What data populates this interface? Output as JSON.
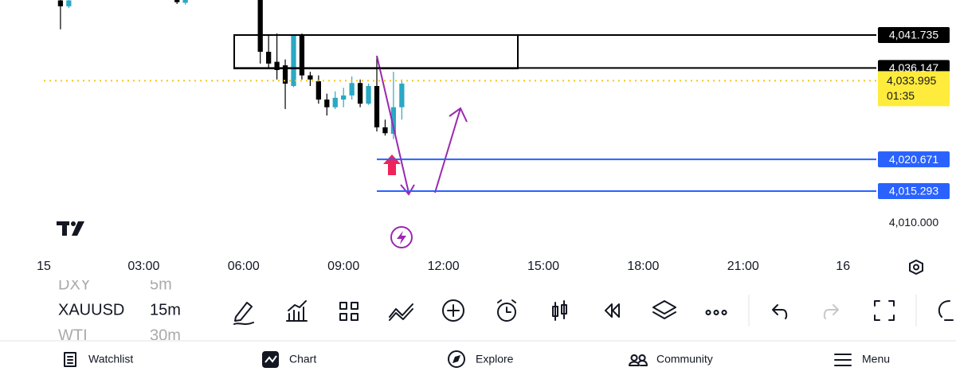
{
  "chart_data": {
    "type": "candlestick",
    "x": [
      0.5,
      0.75,
      4.0,
      4.25,
      6.5,
      6.75,
      7.0,
      7.25,
      7.5,
      7.75,
      8.0,
      8.25,
      8.5,
      8.75,
      9.0,
      9.25,
      9.5,
      9.75,
      10.0,
      10.25,
      10.5,
      10.75
    ],
    "open": [
      4047.6,
      4046.6,
      4047.7,
      4047.2,
      4047.7,
      4038.9,
      4037.2,
      4036.6,
      4033.1,
      4041.6,
      4034.9,
      4033.9,
      4030.8,
      4029.5,
      4030.8,
      4031.5,
      4033.6,
      4030.1,
      4033.1,
      4026.1,
      4025.0,
      4029.5
    ],
    "high": [
      4048.5,
      4048.5,
      4048.0,
      4048.0,
      4047.9,
      4041.6,
      4042.0,
      4037.6,
      4041.7,
      4042.0,
      4035.5,
      4034.9,
      4031.8,
      4032.2,
      4032.8,
      4034.7,
      4034.2,
      4033.5,
      4038.2,
      4027.4,
      4035.5,
      4034.2
    ],
    "low": [
      4042.7,
      4046.3,
      4047.0,
      4046.9,
      4036.9,
      4036.2,
      4034.2,
      4029.2,
      4032.9,
      4034.2,
      4033.1,
      4030.1,
      4028.1,
      4029.2,
      4029.5,
      4030.8,
      4029.5,
      4029.9,
      4025.4,
      4024.7,
      4024.1,
      4027.4
    ],
    "close": [
      4046.6,
      4047.6,
      4047.3,
      4047.7,
      4038.9,
      4036.9,
      4035.8,
      4033.5,
      4041.6,
      4034.9,
      4034.2,
      4030.8,
      4029.5,
      4031.1,
      4031.5,
      4033.6,
      4030.1,
      4033.1,
      4026.1,
      4025.1,
      4029.5,
      4033.5
    ],
    "up_color": "#2aa8c4",
    "down_color": "#000000",
    "xlim": [
      -1.316,
      25.0
    ],
    "ylim": [
      4004.77,
      4047.67
    ],
    "xticks": [
      {
        "value": 0,
        "label": "15"
      },
      {
        "value": 3,
        "label": "03:00"
      },
      {
        "value": 6,
        "label": "06:00"
      },
      {
        "value": 9,
        "label": "09:00"
      },
      {
        "value": 12,
        "label": "12:00"
      },
      {
        "value": 15,
        "label": "15:00"
      },
      {
        "value": 18,
        "label": "18:00"
      },
      {
        "value": 21,
        "label": "21:00"
      },
      {
        "value": 24,
        "label": "16"
      }
    ],
    "yticks": [
      {
        "value": 4010,
        "label": "4,010.000"
      }
    ],
    "levels": [
      {
        "value": 4041.735,
        "label": "4,041.735",
        "color": "#000000"
      },
      {
        "value": 4036.147,
        "label": "4,036.147",
        "color": "#000000"
      },
      {
        "value": 4020.671,
        "label": "4,020.671",
        "color": "#2962ff"
      },
      {
        "value": 4015.293,
        "label": "4,015.293",
        "color": "#2962ff"
      }
    ],
    "current_price": {
      "value": 4033.995,
      "label": "4,033.995",
      "countdown": "01:35",
      "color": "#ffeb3b"
    }
  },
  "symbols": [
    {
      "name": "DXY",
      "interval": "5m"
    },
    {
      "name": "XAUUSD",
      "interval": "15m"
    },
    {
      "name": "WTI",
      "interval": "30m"
    }
  ],
  "nav": [
    "Watchlist",
    "Chart",
    "Explore",
    "Community",
    "Menu"
  ]
}
